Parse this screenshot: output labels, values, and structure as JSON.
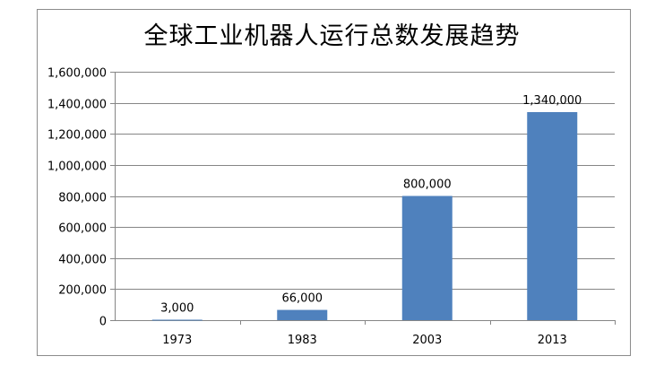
{
  "chart_data": {
    "type": "bar",
    "title": "全球工业机器人运行总数发展趋势",
    "categories": [
      "1973",
      "1983",
      "2003",
      "2013"
    ],
    "values": [
      3000,
      66000,
      800000,
      1340000
    ],
    "data_labels": [
      "3,000",
      "66,000",
      "800,000",
      "1,340,000"
    ],
    "y_ticks": [
      "0",
      "200,000",
      "400,000",
      "600,000",
      "800,000",
      "1,000,000",
      "1,200,000",
      "1,400,000",
      "1,600,000"
    ],
    "ylim": [
      0,
      1600000
    ],
    "grid": true,
    "legend": "none",
    "bar_color": "#4f81bd",
    "grid_color": "#868686"
  }
}
